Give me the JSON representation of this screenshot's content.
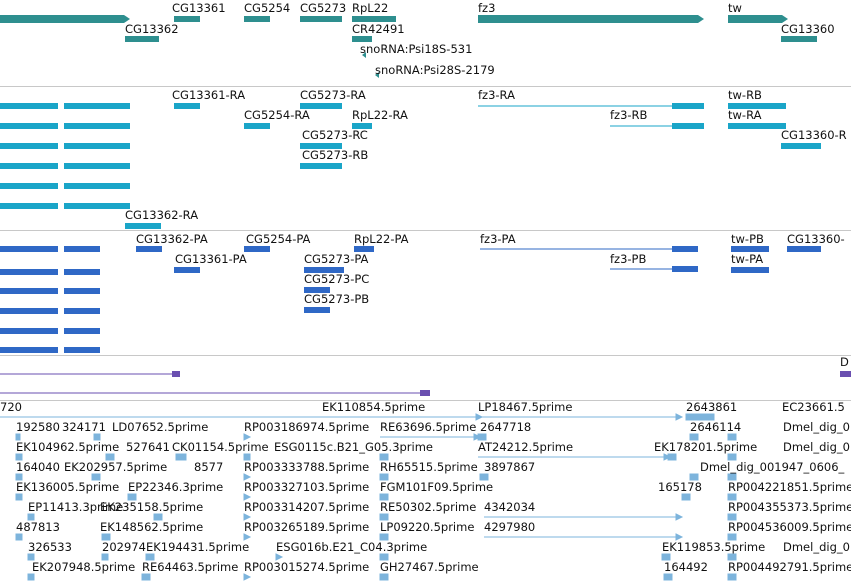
{
  "gene_track": {
    "labels": [
      "CG13361",
      "CG5254",
      "CG5273",
      "RpL22",
      "fz3",
      "tw",
      "CG13362",
      "CR42491",
      "snoRNA:Psi18S-531",
      "CG13360",
      "snoRNA:Psi28S-2179"
    ]
  },
  "transcript_track": {
    "labels": [
      "CG13361-RA",
      "CG5273-RA",
      "fz3-RA",
      "tw-RB",
      "CG5254-RA",
      "RpL22-RA",
      "fz3-RB",
      "tw-RA",
      "CG5273-RC",
      "CG13360-R",
      "CG5273-RB",
      "CG13362-RA"
    ]
  },
  "protein_track": {
    "labels": [
      "CG13362-PA",
      "CG5254-PA",
      "RpL22-PA",
      "fz3-PA",
      "tw-PB",
      "CG13360-",
      "CG13361-PA",
      "CG5273-PA",
      "fz3-PB",
      "tw-PA",
      "CG5273-PC",
      "CG5273-PB"
    ]
  },
  "misc_track": {
    "labels": [
      "D"
    ]
  },
  "est_track": {
    "rows": [
      [
        "720",
        "EK110854.5prime",
        "LP18467.5prime",
        "2643861",
        "EC23661.5"
      ],
      [
        "192580",
        "324171",
        "LD07652.5prime",
        "RP003186974.5prime",
        "RE63696.5prime",
        "2647718",
        "2646114",
        "Dmel_dig_0"
      ],
      [
        "EK104962.5prime",
        "527641",
        "CK01154.5prime",
        "ESG0115c.B21_G05.3prime",
        "AT24212.5prime",
        "EK178201.5prime",
        "Dmel_dig_0"
      ],
      [
        "164040",
        "EK202957.5prime",
        "8577",
        "RP003333788.5prime",
        "RH65515.5prime",
        "3897867",
        "Dmel_dig_001947_0606_"
      ],
      [
        "EK136005.5prime",
        "EP22346.3prime",
        "RP003327103.5prime",
        "FGM101F09.5prime",
        "165178",
        "RP004221851.5prime"
      ],
      [
        "EP11413.3prime",
        "EK235158.5prime",
        "RP003314207.5prime",
        "RE50302.5prime",
        "4342034",
        "RP004355373.5prime"
      ],
      [
        "487813",
        "EK148562.5prime",
        "RP003265189.5prime",
        "LP09220.5prime",
        "4297980",
        "RP004536009.5prime"
      ],
      [
        "326533",
        "202974",
        "EK194431.5prime",
        "ESG016b.E21_C04.3prime",
        "EK119853.5prime",
        "Dmel_dig_0"
      ],
      [
        "EK207948.5prime",
        "RE64463.5prime",
        "RP003015274.5prime",
        "GH27467.5prime",
        "164492",
        "RP004492791.5prime"
      ]
    ]
  },
  "colors": {
    "gene": "#2e8f8f",
    "transcript": "#1aa5c8",
    "protein": "#2f68c6",
    "misc": "#6a4fb0",
    "est": "#7db4dc",
    "separator": "#c8c8c8"
  }
}
